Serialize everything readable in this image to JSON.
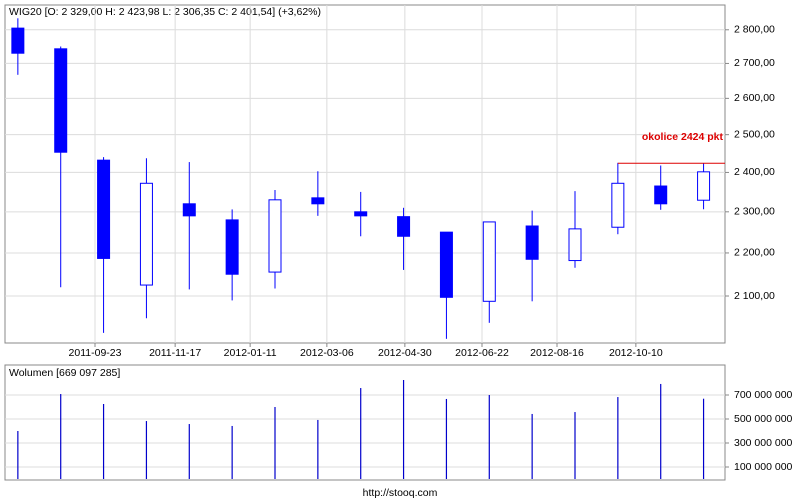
{
  "chart_data": [
    {
      "type": "candlestick",
      "title": "WIG20 [O: 2 329,00  H: 2 423,98  L: 2 306,35  C: 2 401,54]  (+3,62%)",
      "x": [
        0,
        1,
        2,
        3,
        4,
        5,
        6,
        7,
        8,
        9,
        10,
        11,
        12,
        13,
        14,
        15,
        16
      ],
      "xlim": [
        -0.3,
        16.5
      ],
      "xticks": [
        {
          "value": 1.8,
          "label": "2011-09-23"
        },
        {
          "value": 3.67,
          "label": "2011-11-17"
        },
        {
          "value": 5.42,
          "label": "2012-01-11"
        },
        {
          "value": 7.21,
          "label": "2012-03-06"
        },
        {
          "value": 9.03,
          "label": "2012-04-30"
        },
        {
          "value": 10.83,
          "label": "2012-06-22"
        },
        {
          "value": 12.58,
          "label": "2012-08-16"
        },
        {
          "value": 14.42,
          "label": "2012-10-10"
        }
      ],
      "ylim": [
        1996,
        2876
      ],
      "log": true,
      "grid": true,
      "yticks": [
        {
          "value": 2100,
          "label": "2 100,00"
        },
        {
          "value": 2200,
          "label": "2 200,00"
        },
        {
          "value": 2300,
          "label": "2 300,00"
        },
        {
          "value": 2400,
          "label": "2 400,00"
        },
        {
          "value": 2500,
          "label": "2 500,00"
        },
        {
          "value": 2600,
          "label": "2 600,00"
        },
        {
          "value": 2700,
          "label": "2 700,00"
        },
        {
          "value": 2800,
          "label": "2 800,00"
        }
      ],
      "color": "#0000ff",
      "open": [
        2805,
        2743,
        2432,
        2125,
        2320,
        2280,
        2155,
        2335,
        2300,
        2288,
        2250,
        2088,
        2265,
        2182,
        2262,
        2365,
        2329
      ],
      "high": [
        2835,
        2750,
        2440,
        2437,
        2427,
        2306,
        2355,
        2403,
        2350,
        2310,
        2250,
        2275,
        2303,
        2352,
        2425,
        2418,
        2423.98
      ],
      "low": [
        2667,
        2120,
        2018,
        2050,
        2115,
        2090,
        2117,
        2290,
        2240,
        2160,
        2005,
        2040,
        2088,
        2165,
        2245,
        2305,
        2306.35
      ],
      "close": [
        2730,
        2453,
        2187,
        2372,
        2290,
        2150,
        2330,
        2320,
        2290,
        2240,
        2097,
        2275,
        2185,
        2258,
        2372,
        2320,
        2401.54
      ],
      "annotation": {
        "text": "okolice 2424 pkt",
        "value": 2424,
        "x": 14,
        "color": "#dd0000"
      }
    },
    {
      "type": "volume",
      "title": "Wolumen [669 097 285]",
      "x": [
        0,
        1,
        2,
        3,
        4,
        5,
        6,
        7,
        8,
        9,
        10,
        11,
        12,
        13,
        14,
        15,
        16
      ],
      "xlim": [
        -0.3,
        16.5
      ],
      "ylim": [
        0,
        950000000
      ],
      "grid": true,
      "yticks": [
        {
          "value": 100000000,
          "label": "100 000 000"
        },
        {
          "value": 300000000,
          "label": "300 000 000"
        },
        {
          "value": 500000000,
          "label": "500 000 000"
        },
        {
          "value": 700000000,
          "label": "700 000 000"
        }
      ],
      "color": "#0000cc",
      "values": [
        400000000,
        708000000,
        625000000,
        483000000,
        458000000,
        442000000,
        600000000,
        492000000,
        758000000,
        825000000,
        667000000,
        700000000,
        542000000,
        558000000,
        683000000,
        792000000,
        669097285
      ]
    },
    {
      "type": "footer",
      "text": "http://stooq.com"
    }
  ]
}
